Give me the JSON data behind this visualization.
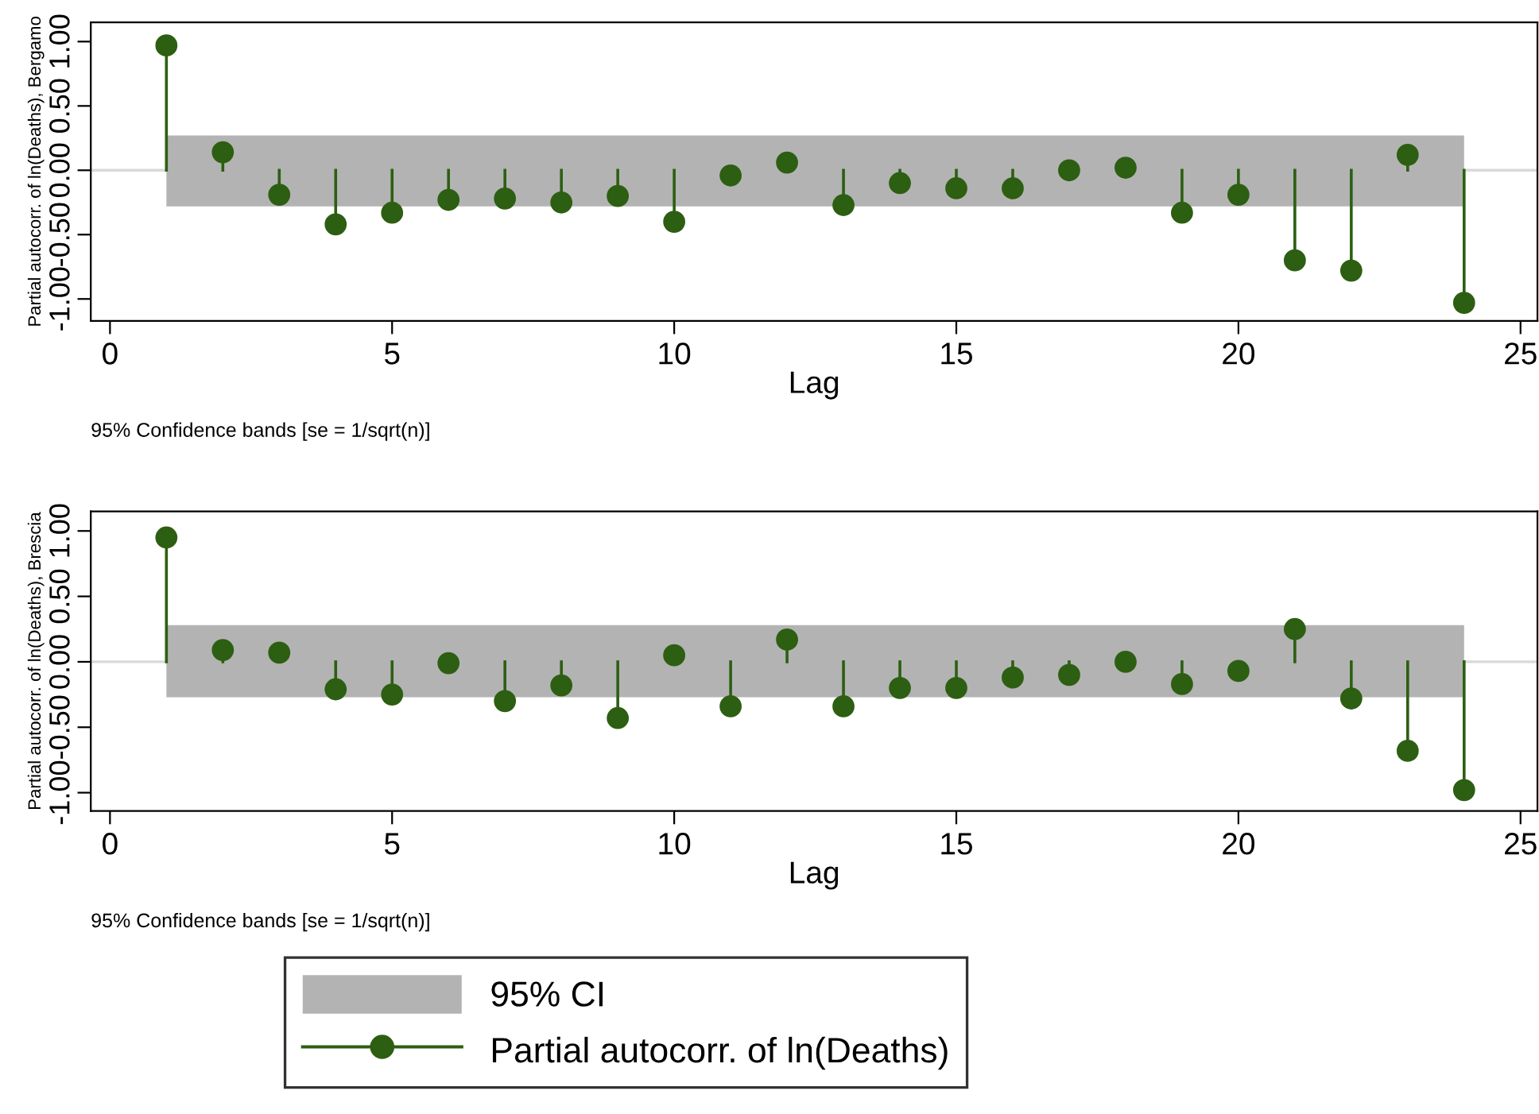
{
  "chart_data": [
    {
      "type": "lollipop",
      "x": [
        1,
        2,
        3,
        4,
        5,
        6,
        7,
        8,
        9,
        10,
        11,
        12,
        13,
        14,
        15,
        16,
        17,
        18,
        19,
        20,
        21,
        22,
        23,
        24
      ],
      "series": [
        {
          "color": "#2d5f12",
          "values": [
            0.97,
            0.14,
            -0.19,
            -0.42,
            -0.33,
            -0.23,
            -0.22,
            -0.25,
            -0.2,
            -0.4,
            -0.04,
            0.06,
            -0.27,
            -0.1,
            -0.14,
            -0.14,
            0.0,
            0.02,
            -0.33,
            -0.19,
            -0.7,
            -0.78,
            0.12,
            -1.03
          ]
        }
      ],
      "xlabel": "Lag",
      "ylabel": "Partial autocorr. of ln(Deaths), Bergamo",
      "xlim": [
        -0.34,
        25.3
      ],
      "xticks": [
        0,
        5,
        10,
        15,
        20,
        25
      ],
      "ylim": [
        -1.17,
        1.15
      ],
      "yticks": [
        {
          "value": -1,
          "label": "-1.00"
        },
        {
          "value": -0.5,
          "label": "-0.50"
        },
        {
          "value": 0,
          "label": "0.00"
        },
        {
          "value": 0.5,
          "label": "0.50"
        },
        {
          "value": 1,
          "label": "1.00"
        }
      ],
      "bands": [
        {
          "axis": "y",
          "from": -0.28,
          "to": 0.27,
          "color": "#b3b3b3"
        }
      ],
      "ref_lines": [
        {
          "axis": "y",
          "value": 0,
          "color": "#d9d9d9"
        }
      ],
      "marker": "circle",
      "grid": false,
      "legend": false,
      "annotations": [
        "95% Confidence bands [se = 1/sqrt(n)]"
      ]
    },
    {
      "type": "lollipop",
      "x": [
        1,
        2,
        3,
        4,
        5,
        6,
        7,
        8,
        9,
        10,
        11,
        12,
        13,
        14,
        15,
        16,
        17,
        18,
        19,
        20,
        21,
        22,
        23,
        24
      ],
      "series": [
        {
          "name": "Partial autocorr. of ln(Deaths)",
          "color": "#2d5f12",
          "values": [
            0.95,
            0.09,
            0.07,
            -0.21,
            -0.25,
            -0.01,
            -0.3,
            -0.18,
            -0.43,
            0.05,
            -0.34,
            0.17,
            -0.34,
            -0.2,
            -0.2,
            -0.12,
            -0.1,
            0.0,
            -0.17,
            -0.07,
            0.25,
            -0.28,
            -0.68,
            -0.98
          ]
        }
      ],
      "xlabel": "Lag",
      "ylabel": "Partial autocorr. of ln(Deaths), Brescia",
      "xlim": [
        -0.34,
        25.3
      ],
      "xticks": [
        0,
        5,
        10,
        15,
        20,
        25
      ],
      "ylim": [
        -1.14,
        1.15
      ],
      "yticks": [
        {
          "value": -1,
          "label": "-1.00"
        },
        {
          "value": -0.5,
          "label": "-0.50"
        },
        {
          "value": 0,
          "label": "0.00"
        },
        {
          "value": 0.5,
          "label": "0.50"
        },
        {
          "value": 1,
          "label": "1.00"
        }
      ],
      "bands": [
        {
          "axis": "y",
          "from": -0.27,
          "to": 0.28,
          "color": "#b3b3b3",
          "label": "95% CI"
        }
      ],
      "ref_lines": [
        {
          "axis": "y",
          "value": 0,
          "color": "#d9d9d9"
        }
      ],
      "marker": "circle",
      "grid": false,
      "legend": "bottom",
      "annotations": [
        "95% Confidence bands [se = 1/sqrt(n)]"
      ]
    }
  ]
}
